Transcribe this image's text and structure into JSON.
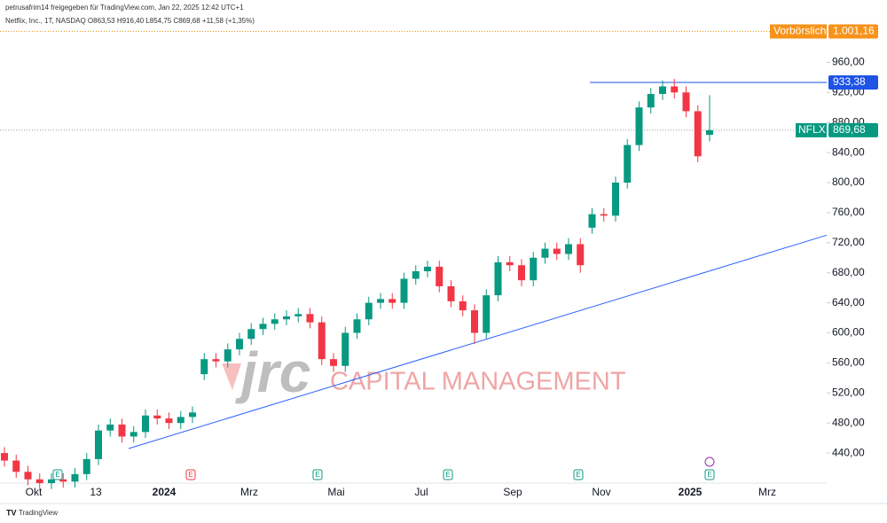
{
  "chart_data": {
    "type": "candlestick",
    "header": "petrusafrim14 freigegeben für TradingView.com, Jan 22, 2025 12:42 UTC+1",
    "legend": "Netflix, Inc., 1T, NASDAQ O863,53 H916,40 L854,75 C869,68 +11,58 (+1,35%)",
    "watermark": {
      "logo": "jrc",
      "text": "CAPITAL MANAGEMENT"
    },
    "footer": "TradingView",
    "up_color": "#089981",
    "down_color": "#f23645",
    "ylim": [
      400,
      1010
    ],
    "yticks": [
      {
        "value": 440,
        "label": "440,00"
      },
      {
        "value": 480,
        "label": "480,00"
      },
      {
        "value": 520,
        "label": "520,00"
      },
      {
        "value": 560,
        "label": "560,00"
      },
      {
        "value": 600,
        "label": "600,00"
      },
      {
        "value": 640,
        "label": "640,00"
      },
      {
        "value": 680,
        "label": "680,00"
      },
      {
        "value": 720,
        "label": "720,00"
      },
      {
        "value": 760,
        "label": "760,00"
      },
      {
        "value": 800,
        "label": "800,00"
      },
      {
        "value": 840,
        "label": "840,00"
      },
      {
        "value": 880,
        "label": "880,00"
      },
      {
        "value": 920,
        "label": "920,00"
      },
      {
        "value": 960,
        "label": "960,00"
      }
    ],
    "xticks": [
      "Okt",
      "13",
      "2024",
      "Mrz",
      "Mai",
      "Jul",
      "Sep",
      "Nov",
      "2025",
      "Mrz"
    ],
    "open": [
      440,
      430,
      415,
      405,
      400,
      405,
      402,
      412,
      432,
      470,
      478,
      462,
      468,
      490,
      486,
      480,
      488,
      545,
      565,
      562,
      578,
      592,
      605,
      612,
      618,
      622,
      625,
      614,
      565,
      556,
      600,
      618,
      640,
      645,
      640,
      672,
      682,
      688,
      662,
      642,
      630,
      600,
      650,
      694,
      690,
      670,
      700,
      712,
      705,
      718,
      740,
      758,
      756,
      800,
      850,
      900,
      918,
      928,
      920,
      895,
      863.53
    ],
    "high": [
      448,
      438,
      423,
      413,
      413,
      413,
      420,
      440,
      478,
      486,
      486,
      476,
      498,
      498,
      494,
      496,
      502,
      573,
      573,
      586,
      600,
      613,
      620,
      626,
      630,
      633,
      633,
      622,
      573,
      608,
      626,
      648,
      653,
      653,
      680,
      690,
      696,
      696,
      670,
      650,
      638,
      658,
      702,
      702,
      698,
      708,
      720,
      720,
      726,
      726,
      766,
      766,
      808,
      858,
      908,
      926,
      936,
      938,
      928,
      903,
      916.4
    ],
    "low": [
      422,
      407,
      397,
      392,
      392,
      394,
      394,
      404,
      424,
      462,
      454,
      454,
      460,
      478,
      472,
      472,
      480,
      537,
      554,
      554,
      570,
      584,
      597,
      604,
      610,
      614,
      606,
      557,
      548,
      548,
      592,
      610,
      632,
      632,
      632,
      664,
      674,
      654,
      634,
      622,
      585,
      592,
      642,
      682,
      662,
      662,
      692,
      697,
      697,
      680,
      732,
      748,
      748,
      792,
      842,
      892,
      910,
      912,
      887,
      827,
      854.75
    ],
    "close": [
      430,
      415,
      405,
      400,
      405,
      402,
      412,
      432,
      470,
      478,
      462,
      468,
      490,
      486,
      480,
      488,
      494,
      565,
      562,
      578,
      592,
      605,
      612,
      618,
      622,
      625,
      614,
      565,
      556,
      600,
      618,
      640,
      645,
      640,
      672,
      682,
      688,
      662,
      642,
      630,
      600,
      650,
      694,
      690,
      670,
      700,
      712,
      705,
      718,
      690,
      758,
      756,
      800,
      850,
      900,
      918,
      928,
      920,
      895,
      835,
      869.68
    ],
    "trendline": {
      "color": "#2962ff",
      "values": [
        446,
        730
      ]
    },
    "resistance": {
      "color": "#1e53e5",
      "value": 933.38,
      "label": "933,38"
    },
    "premarket": {
      "name": "Vorbörslich",
      "value": 1001.16,
      "label": "1.001,16",
      "color": "#f7931a"
    },
    "last_price": {
      "name": "NFLX",
      "value": 869.68,
      "label": "869,68",
      "color": "#089981"
    },
    "event_markers": [
      {
        "label": "E",
        "color": "#089981"
      },
      {
        "label": "E",
        "color": "#f23645"
      },
      {
        "label": "E",
        "color": "#089981"
      },
      {
        "label": "E",
        "color": "#089981"
      },
      {
        "label": "E",
        "color": "#089981"
      },
      {
        "label": "E",
        "color": "#089981"
      }
    ]
  }
}
